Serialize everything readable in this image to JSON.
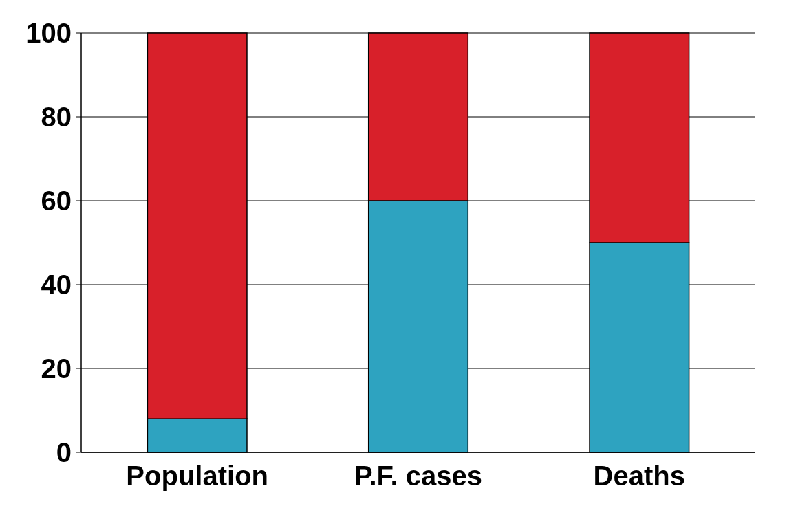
{
  "chart_data": {
    "type": "bar",
    "stacked": true,
    "categories": [
      "Population",
      "P.F. cases",
      "Deaths"
    ],
    "series": [
      {
        "color": "#2ea3c0",
        "values": [
          8,
          60,
          50
        ]
      },
      {
        "color": "#d8202a",
        "values": [
          92,
          40,
          50
        ]
      }
    ],
    "ylim": [
      0,
      100
    ],
    "yticks": [
      0,
      20,
      40,
      60,
      80,
      100
    ],
    "grid": "y"
  }
}
